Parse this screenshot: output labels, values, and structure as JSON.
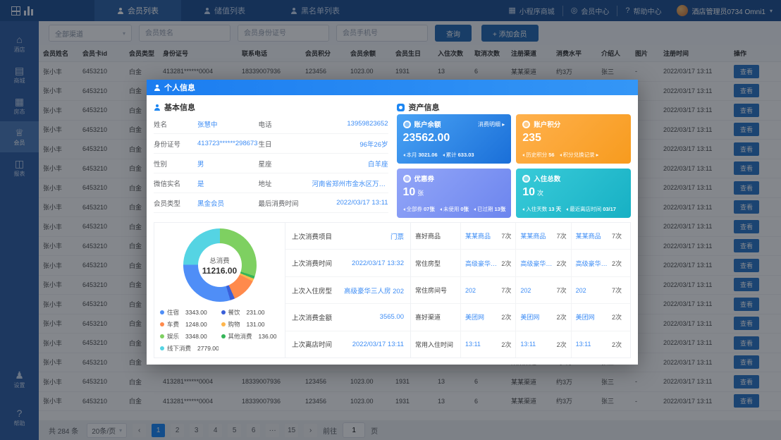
{
  "colors": {
    "topbar": "#1e5192",
    "sidebar": "#2f5fa5",
    "accent": "#1989fa",
    "modal_header": "#1b7df0"
  },
  "topbar": {
    "tabs": [
      {
        "label": "会员列表",
        "active": true
      },
      {
        "label": "储值列表",
        "active": false
      },
      {
        "label": "黑名单列表",
        "active": false
      }
    ],
    "right_items": [
      {
        "glyph": "▦",
        "name": "qr-icon",
        "label": "小程序商城"
      },
      {
        "glyph": "◎",
        "name": "ring-icon",
        "label": "会员中心"
      },
      {
        "glyph": "?",
        "name": "help-icon",
        "label": "帮助中心"
      }
    ],
    "user": {
      "name": "酒店管理员0734 Omni1",
      "caret": "▾"
    }
  },
  "sidebar": {
    "items": [
      {
        "glyph": "⌂",
        "name": "hotel",
        "label": "酒店",
        "active": false
      },
      {
        "glyph": "▤",
        "name": "mall",
        "label": "商城",
        "active": false
      },
      {
        "glyph": "▦",
        "name": "rooms",
        "label": "房态",
        "active": false
      },
      {
        "glyph": "♕",
        "name": "members",
        "label": "会员",
        "active": true
      },
      {
        "glyph": "◫",
        "name": "reports",
        "label": "报表",
        "active": false
      }
    ],
    "bottom": [
      {
        "glyph": "♟",
        "name": "settings",
        "label": "设置"
      },
      {
        "glyph": "?",
        "name": "help",
        "label": "帮助"
      }
    ]
  },
  "filters": {
    "channel": {
      "value": "全部渠道",
      "caret": "▾"
    },
    "inputs": [
      {
        "placeholder": "会员姓名"
      },
      {
        "placeholder": "会员身份证号"
      },
      {
        "placeholder": "会员手机号"
      }
    ],
    "search": "查询",
    "add": "+ 添加会员"
  },
  "table": {
    "headers": [
      "会员姓名",
      "会员卡id",
      "会员类型",
      "身份证号",
      "联系电话",
      "会员积分",
      "会员余额",
      "会员生日",
      "入住次数",
      "取消次数",
      "注册渠道",
      "消费水平",
      "介绍人",
      "图片",
      "注册时间",
      "操作"
    ],
    "action_label": "查看",
    "rows": [
      {
        "cells": [
          "张小丰",
          "6453210",
          "白金",
          "413281******0004",
          "18339007936",
          "123456",
          "1023.00",
          "1931",
          "13",
          "6",
          "某某渠道",
          "约3万",
          "张三",
          "-",
          "2022/03/17 13:11"
        ]
      },
      {
        "cells": [
          "张小丰",
          "6453210",
          "白金",
          "413281******0004",
          "18339007936",
          "123456",
          "1023.00",
          "1931",
          "13",
          "6",
          "某某渠道",
          "约3万",
          "张三",
          "-",
          "2022/03/17 13:11"
        ]
      },
      {
        "cells": [
          "张小丰",
          "6453210",
          "白金",
          "413281******0004",
          "18339007936",
          "123456",
          "1023.00",
          "1931",
          "13",
          "6",
          "某某渠道",
          "约3万",
          "张三",
          "-",
          "2022/03/17 13:11"
        ]
      },
      {
        "cells": [
          "张小丰",
          "6453210",
          "白金",
          "413281******0004",
          "18339007936",
          "123456",
          "1023.00",
          "1931",
          "13",
          "6",
          "某某渠道",
          "约3万",
          "张三",
          "-",
          "2022/03/17 13:11"
        ]
      },
      {
        "cells": [
          "张小丰",
          "6453210",
          "白金",
          "413281******0004",
          "18339007936",
          "123456",
          "1023.00",
          "1931",
          "13",
          "6",
          "某某渠道",
          "约3万",
          "张三",
          "-",
          "2022/03/17 13:11"
        ]
      },
      {
        "cells": [
          "张小丰",
          "6453210",
          "白金",
          "413281******0004",
          "18339007936",
          "123456",
          "1023.00",
          "1931",
          "13",
          "6",
          "某某渠道",
          "约3万",
          "张三",
          "-",
          "2022/03/17 13:11"
        ]
      },
      {
        "cells": [
          "张小丰",
          "6453210",
          "白金",
          "413281******0004",
          "18339007936",
          "123456",
          "1023.00",
          "1931",
          "13",
          "6",
          "某某渠道",
          "约3万",
          "张三",
          "-",
          "2022/03/17 13:11"
        ]
      },
      {
        "cells": [
          "张小丰",
          "6453210",
          "白金",
          "413281******0004",
          "18339007936",
          "123456",
          "1023.00",
          "1931",
          "13",
          "6",
          "某某渠道",
          "约3万",
          "张三",
          "-",
          "2022/03/17 13:11"
        ]
      },
      {
        "cells": [
          "张小丰",
          "6453210",
          "白金",
          "413281******0004",
          "18339007936",
          "123456",
          "1023.00",
          "1931",
          "13",
          "6",
          "某某渠道",
          "约3万",
          "张三",
          "-",
          "2022/03/17 13:11"
        ]
      },
      {
        "cells": [
          "张小丰",
          "6453210",
          "白金",
          "413281******0004",
          "18339007936",
          "123456",
          "1023.00",
          "1931",
          "13",
          "6",
          "某某渠道",
          "约3万",
          "张三",
          "-",
          "2022/03/17 13:11"
        ]
      },
      {
        "cells": [
          "张小丰",
          "6453210",
          "白金",
          "413281******0004",
          "18339007936",
          "123456",
          "1023.00",
          "1931",
          "13",
          "6",
          "某某渠道",
          "约3万",
          "张三",
          "-",
          "2022/03/17 13:11"
        ]
      },
      {
        "cells": [
          "张小丰",
          "6453210",
          "白金",
          "413281******0004",
          "18339007936",
          "123456",
          "1023.00",
          "1931",
          "13",
          "6",
          "某某渠道",
          "约3万",
          "张三",
          "-",
          "2022/03/17 13:11"
        ]
      },
      {
        "cells": [
          "张小丰",
          "6453210",
          "白金",
          "413281******0004",
          "18339007936",
          "123456",
          "1023.00",
          "1931",
          "13",
          "6",
          "某某渠道",
          "约3万",
          "张三",
          "-",
          "2022/03/17 13:11"
        ]
      },
      {
        "cells": [
          "张小丰",
          "6453210",
          "白金",
          "413281******0004",
          "18339007936",
          "123456",
          "1023.00",
          "1931",
          "13",
          "6",
          "某某渠道",
          "约3万",
          "张三",
          "-",
          "2022/03/17 13:11"
        ]
      },
      {
        "cells": [
          "张小丰",
          "6453210",
          "白金",
          "413281******0004",
          "18339007936",
          "123456",
          "1023.00",
          "1931",
          "13",
          "6",
          "某某渠道",
          "约3万",
          "张三",
          "-",
          "2022/03/17 13:11"
        ]
      },
      {
        "cells": [
          "张小丰",
          "6453210",
          "白金",
          "413281******0004",
          "18339007936",
          "123456",
          "1023.00",
          "1931",
          "13",
          "6",
          "某某渠道",
          "约3万",
          "张三",
          "-",
          "2022/03/17 13:11"
        ]
      },
      {
        "cells": [
          "张小丰",
          "6453210",
          "白金",
          "413281******0004",
          "18339007936",
          "123456",
          "1023.00",
          "1931",
          "13",
          "6",
          "某某渠道",
          "约3万",
          "张三",
          "-",
          "2022/03/17 13:11"
        ]
      },
      {
        "cells": [
          "张小丰",
          "6453210",
          "白金",
          "413281******0004",
          "18339007936",
          "123456",
          "1023.00",
          "1931",
          "13",
          "6",
          "某某渠道",
          "约3万",
          "张三",
          "-",
          "2022/03/17 13:11"
        ]
      }
    ]
  },
  "pagination": {
    "total": "共 284 条",
    "per_page": "20条/页",
    "per_page_caret": "▾",
    "prev": "‹",
    "next": "›",
    "pages": [
      {
        "n": "1",
        "active": true
      },
      {
        "n": "2"
      },
      {
        "n": "3"
      },
      {
        "n": "4"
      },
      {
        "n": "5"
      },
      {
        "n": "6"
      },
      {
        "n": "···"
      },
      {
        "n": "15"
      }
    ],
    "goto_label": "前往",
    "goto_value": "1",
    "page_suffix": "页"
  },
  "modal": {
    "title": "个人信息",
    "basic": {
      "title": "基本信息",
      "rows": [
        {
          "l1": "姓名",
          "v1": "张慧中",
          "l2": "电话",
          "v2": "13959823652"
        },
        {
          "l1": "身份证号",
          "v1": "413723******298673",
          "l2": "生日",
          "v2": "96年26岁"
        },
        {
          "l1": "性别",
          "v1": "男",
          "l2": "星座",
          "v2": "白羊座"
        },
        {
          "l1": "微信实名",
          "v1": "是",
          "l2": "地址",
          "v2": "河南省郑州市金水区万达中心"
        },
        {
          "l1": "会员类型",
          "v1": "黑金会员",
          "l2": "最后消费时间",
          "v2": "2022/03/17 13:11"
        }
      ]
    },
    "assets": {
      "title": "资产信息",
      "cards": [
        {
          "key": "balance",
          "title": "账户余额",
          "link": "消费明细 ▸",
          "value": "23562.00",
          "unit": "",
          "color_from": "#4aa3f5",
          "color_to": "#1a6fd8",
          "foot": [
            {
              "t": "本月",
              "v": "3021.06"
            },
            {
              "t": "累计",
              "v": "633.03"
            }
          ]
        },
        {
          "key": "points",
          "title": "账户积分",
          "link": "",
          "value": "235",
          "unit": "",
          "color_from": "#ffb14d",
          "color_to": "#f79b1e",
          "foot": [
            {
              "t": "历史积分",
              "v": "56"
            },
            {
              "t": "积分兑换记录",
              "v": "▸"
            }
          ]
        },
        {
          "key": "coupons",
          "title": "优惠券",
          "link": "",
          "value": "10",
          "unit": "张",
          "color_from": "#93a6f8",
          "color_to": "#6c85ee",
          "foot": [
            {
              "t": "全部券",
              "v": "07张"
            },
            {
              "t": "未使用",
              "v": "0张"
            },
            {
              "t": "已过期",
              "v": "13张"
            }
          ]
        },
        {
          "key": "stays",
          "title": "入住总数",
          "link": "",
          "value": "10",
          "unit": "次",
          "color_from": "#39cbd9",
          "color_to": "#17b0c4",
          "foot": [
            {
              "t": "入住天数",
              "v": "13 天"
            },
            {
              "t": "最近离店时间",
              "v": "03/17"
            }
          ]
        }
      ]
    },
    "donut": {
      "chart_data": {
        "type": "pie",
        "title": "总消费",
        "total_label": "总消费",
        "total_value": "11216.00"
      },
      "center_label": "总消费",
      "center_value": "11216.00",
      "segments": [
        {
          "label": "住宿",
          "value": 3343,
          "display": "3343.00",
          "color": "#4f8ef7"
        },
        {
          "label": "餐饮",
          "value": 231,
          "display": "231.00",
          "color": "#3a5fd9"
        },
        {
          "label": "车费",
          "value": 1248,
          "display": "1248.00",
          "color": "#ff8a4c"
        },
        {
          "label": "购物",
          "value": 131,
          "display": "131.00",
          "color": "#ffb64d"
        },
        {
          "label": "娱乐",
          "value": 3348,
          "display": "3348.00",
          "color": "#7ed061"
        },
        {
          "label": "其他消费",
          "value": 136,
          "display": "136.00",
          "color": "#35b558"
        },
        {
          "label": "线下消费",
          "value": 2779,
          "display": "2779.00",
          "color": "#55d4e3"
        }
      ],
      "segment_order": [
        4,
        5,
        3,
        2,
        1,
        0,
        6
      ]
    },
    "recent": {
      "rows": [
        {
          "label": "上次消费项目",
          "value": "门票"
        },
        {
          "label": "上次消费时间",
          "value": "2022/03/17 13:32"
        },
        {
          "label": "上次入住房型",
          "value": "高级豪华三人房 202"
        },
        {
          "label": "上次消费金额",
          "value": "3565.00"
        },
        {
          "label": "上次离店时间",
          "value": "2022/03/17 13:11"
        }
      ]
    },
    "prefs": {
      "rows": [
        {
          "label": "喜好商品",
          "items": [
            {
              "v": "某某商品",
              "c": "7次"
            },
            {
              "v": "某某商品",
              "c": "7次"
            },
            {
              "v": "某某商品",
              "c": "7次"
            }
          ]
        },
        {
          "label": "常住房型",
          "items": [
            {
              "v": "高级豪华三人房",
              "c": "2次"
            },
            {
              "v": "高级豪华三人房",
              "c": "2次"
            },
            {
              "v": "高级豪华三人房",
              "c": "2次"
            }
          ]
        },
        {
          "label": "常住房间号",
          "items": [
            {
              "v": "202",
              "c": "7次"
            },
            {
              "v": "202",
              "c": "7次"
            },
            {
              "v": "202",
              "c": "7次"
            }
          ]
        },
        {
          "label": "喜好渠道",
          "items": [
            {
              "v": "美团网",
              "c": "2次"
            },
            {
              "v": "美团网",
              "c": "2次"
            },
            {
              "v": "美团网",
              "c": "2次"
            }
          ]
        },
        {
          "label": "常用入住时间",
          "items": [
            {
              "v": "13:11",
              "c": "2次"
            },
            {
              "v": "13:11",
              "c": "2次"
            },
            {
              "v": "13:11",
              "c": "2次"
            }
          ]
        }
      ]
    }
  }
}
